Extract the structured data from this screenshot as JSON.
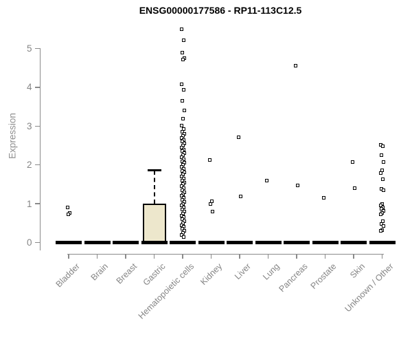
{
  "chart_data": {
    "type": "boxplot",
    "title": "ENSG00000177586 - RP11-113C12.5",
    "xlabel": "",
    "ylabel": "Expression",
    "ylim": [
      0,
      5.5
    ],
    "yticks": [
      0,
      1,
      2,
      3,
      4,
      5
    ],
    "grid": "off",
    "legend": "none",
    "categories": [
      "Bladder",
      "Brain",
      "Breast",
      "Gastric",
      "Hematopoietic cells",
      "Kidney",
      "Liver",
      "Lung",
      "Pancreas",
      "Prostate",
      "Skin",
      "Unknown / Other"
    ],
    "boxes": [
      {
        "category": "Bladder",
        "q1": 0,
        "median": 0,
        "q3": 0,
        "whisker_low": 0,
        "whisker_high": 0
      },
      {
        "category": "Brain",
        "q1": 0,
        "median": 0,
        "q3": 0,
        "whisker_low": 0,
        "whisker_high": 0
      },
      {
        "category": "Breast",
        "q1": 0,
        "median": 0,
        "q3": 0,
        "whisker_low": 0,
        "whisker_high": 0
      },
      {
        "category": "Gastric",
        "q1": 0,
        "median": 0,
        "q3": 1.0,
        "whisker_low": 0,
        "whisker_high": 1.86
      },
      {
        "category": "Hematopoietic cells",
        "q1": 0,
        "median": 0,
        "q3": 0,
        "whisker_low": 0,
        "whisker_high": 0
      },
      {
        "category": "Kidney",
        "q1": 0,
        "median": 0,
        "q3": 0,
        "whisker_low": 0,
        "whisker_high": 0
      },
      {
        "category": "Liver",
        "q1": 0,
        "median": 0,
        "q3": 0,
        "whisker_low": 0,
        "whisker_high": 0
      },
      {
        "category": "Lung",
        "q1": 0,
        "median": 0,
        "q3": 0,
        "whisker_low": 0,
        "whisker_high": 0
      },
      {
        "category": "Pancreas",
        "q1": 0,
        "median": 0,
        "q3": 0,
        "whisker_low": 0,
        "whisker_high": 0
      },
      {
        "category": "Prostate",
        "q1": 0,
        "median": 0,
        "q3": 0,
        "whisker_low": 0,
        "whisker_high": 0
      },
      {
        "category": "Skin",
        "q1": 0,
        "median": 0,
        "q3": 0,
        "whisker_low": 0,
        "whisker_high": 0
      },
      {
        "category": "Unknown / Other",
        "q1": 0,
        "median": 0,
        "q3": 0,
        "whisker_low": 0,
        "whisker_high": 0
      }
    ],
    "outlier_points": [
      [
        0.9,
        0.76,
        0.73
      ],
      [],
      [],
      [],
      [
        5.5,
        5.21,
        4.9,
        4.76,
        4.72,
        4.07,
        3.93,
        3.66,
        3.4,
        3.19,
        3.01,
        2.92,
        2.85,
        2.8,
        2.75,
        2.7,
        2.65,
        2.6,
        2.55,
        2.5,
        2.45,
        2.4,
        2.35,
        2.3,
        2.25,
        2.2,
        2.15,
        2.1,
        2.05,
        2.0,
        1.95,
        1.9,
        1.85,
        1.8,
        1.75,
        1.7,
        1.65,
        1.6,
        1.55,
        1.5,
        1.45,
        1.4,
        1.35,
        1.3,
        1.25,
        1.2,
        1.15,
        1.1,
        1.05,
        1.0,
        0.95,
        0.9,
        0.85,
        0.8,
        0.75,
        0.7,
        0.65,
        0.6,
        0.55,
        0.5,
        0.45,
        0.4,
        0.35,
        0.3,
        0.25,
        0.2,
        0.15
      ],
      [
        2.12,
        1.06,
        1.0,
        0.8
      ],
      [
        2.72,
        1.18
      ],
      [
        1.59
      ],
      [
        4.56,
        1.47
      ],
      [
        1.16
      ],
      [
        2.08,
        1.4
      ],
      [
        2.52,
        2.48,
        2.26,
        2.08,
        1.86,
        1.79,
        1.64,
        1.38,
        1.35,
        1.0,
        0.95,
        0.9,
        0.86,
        0.81,
        0.76,
        0.72,
        0.55,
        0.48,
        0.42,
        0.32,
        0.3
      ]
    ]
  },
  "colors": {
    "box_fill": "#ede7cc",
    "box_border": "#000000",
    "median_bar": "#000000",
    "point_stroke": "#000000",
    "axis": "#8a8a8a",
    "tick_text": "#858585",
    "title_text": "#000000"
  }
}
